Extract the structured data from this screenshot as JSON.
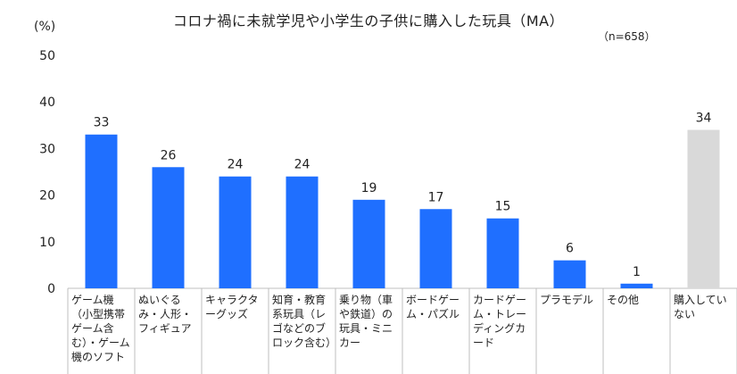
{
  "chart_data": {
    "type": "bar",
    "title": "コロナ禍に未就学児や小学生の子供に購入した玩具（MA）",
    "unit_label": "(%)",
    "sample_note": "（n=658）",
    "ylim": [
      0,
      50
    ],
    "yticks": [
      0,
      10,
      20,
      30,
      40,
      50
    ],
    "grid": false,
    "categories": [
      "ゲーム機（小型携帯ゲーム含む）・ゲーム機のソフト",
      "ぬいぐるみ・人形・フィギュア",
      "キャラクターグッズ",
      "知育・教育系玩具（レゴなどのブロック含む）",
      "乗り物（車や鉄道）の玩具・ミニカー",
      "ボードゲーム・パズル",
      "カードゲーム・トレーディングカード",
      "プラモデル",
      "その他",
      "購入していない"
    ],
    "values": [
      33,
      26,
      24,
      24,
      19,
      17,
      15,
      6,
      1,
      34
    ],
    "colors": {
      "bar": "#1f6fff",
      "bar_none": "#d9d9d9",
      "axis": "#bfbfbf"
    }
  }
}
